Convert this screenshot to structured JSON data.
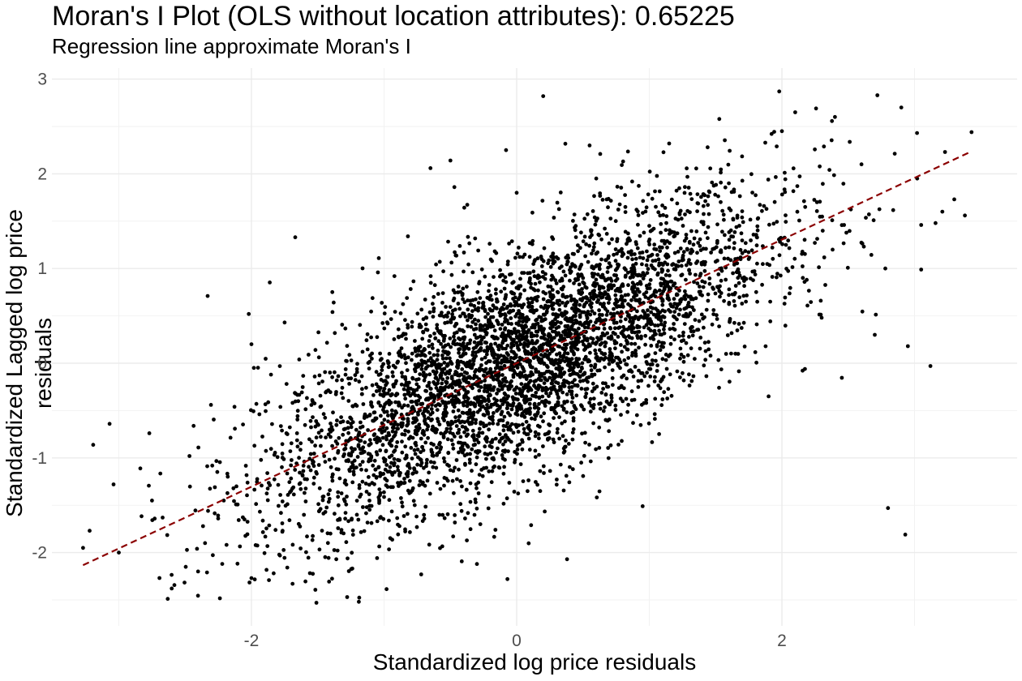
{
  "chart_data": {
    "type": "scatter",
    "title": "Moran's I Plot (OLS without location attributes): 0.65225",
    "subtitle": "Regression line approximate Moran's I",
    "xlabel": "Standardized log price residuals",
    "ylabel": "Standardized Lagged log price residuals",
    "xlim": [
      -3.5,
      3.6
    ],
    "ylim": [
      -2.7,
      3.1
    ],
    "x_ticks": [
      -2,
      0,
      2
    ],
    "x_tick_labels": [
      "-2",
      "0",
      "2"
    ],
    "y_ticks": [
      -2,
      -1,
      0,
      1,
      2,
      3
    ],
    "y_tick_labels": [
      "-2",
      "-1",
      "0",
      "1",
      "2",
      "3"
    ],
    "grid": true,
    "n_points_approx": 4500,
    "regression_line": {
      "slope": 0.65225,
      "intercept": 0.0,
      "x_range": [
        -3.27,
        3.43
      ],
      "color": "#8b0000",
      "style": "dashed"
    },
    "point_color": "#000000",
    "sample_points": [
      [
        -3.27,
        -1.95
      ],
      [
        -3.22,
        -1.77
      ],
      [
        -3.07,
        -0.64
      ],
      [
        -3.04,
        -1.28
      ],
      [
        -3.0,
        -2.0
      ],
      [
        -2.77,
        -0.74
      ],
      [
        -2.75,
        -1.45
      ],
      [
        -2.67,
        -1.63
      ],
      [
        -2.4,
        -0.89
      ],
      [
        -2.35,
        -1.9
      ],
      [
        -2.33,
        0.71
      ],
      [
        -2.22,
        -2.12
      ],
      [
        -2.02,
        0.52
      ],
      [
        -2.0,
        0.2
      ],
      [
        -2.0,
        -2.27
      ],
      [
        -1.75,
        0.43
      ],
      [
        -1.67,
        1.33
      ],
      [
        -1.69,
        -2.33
      ],
      [
        -1.6,
        -1.37
      ],
      [
        -1.51,
        -2.53
      ],
      [
        -1.36,
        -2.07
      ],
      [
        -1.38,
        0.64
      ],
      [
        -1.24,
        -1.05
      ],
      [
        -1.19,
        -2.52
      ],
      [
        -1.04,
        1.11
      ],
      [
        -0.99,
        -1.02
      ],
      [
        -0.82,
        1.34
      ],
      [
        -0.72,
        -2.23
      ],
      [
        -0.65,
        2.06
      ],
      [
        -0.5,
        2.14
      ],
      [
        -0.47,
        1.86
      ],
      [
        -0.29,
        1.19
      ],
      [
        -0.22,
        0.37
      ],
      [
        -0.08,
        2.25
      ],
      [
        -0.07,
        -2.28
      ],
      [
        0.0,
        1.8
      ],
      [
        0.2,
        2.82
      ],
      [
        0.38,
        -2.07
      ],
      [
        0.55,
        2.3
      ],
      [
        0.6,
        1.95
      ],
      [
        0.63,
        2.21
      ],
      [
        0.95,
        -1.51
      ],
      [
        1.0,
        1.45
      ],
      [
        1.15,
        2.32
      ],
      [
        1.3,
        0.6
      ],
      [
        1.44,
        2.28
      ],
      [
        1.6,
        1.9
      ],
      [
        1.75,
        1.1
      ],
      [
        1.9,
        -0.35
      ],
      [
        1.98,
        2.87
      ],
      [
        2.0,
        2.45
      ],
      [
        2.1,
        2.65
      ],
      [
        2.3,
        0.48
      ],
      [
        2.4,
        2.6
      ],
      [
        2.6,
        2.1
      ],
      [
        2.7,
        0.3
      ],
      [
        2.72,
        2.83
      ],
      [
        2.78,
        1.0
      ],
      [
        2.8,
        -1.53
      ],
      [
        2.9,
        2.7
      ],
      [
        2.95,
        0.18
      ],
      [
        3.02,
        1.95
      ],
      [
        3.05,
        1.46
      ],
      [
        3.12,
        -0.03
      ],
      [
        3.21,
        1.6
      ],
      [
        3.23,
        2.23
      ],
      [
        3.3,
        1.73
      ],
      [
        3.38,
        1.56
      ],
      [
        3.43,
        2.44
      ],
      [
        2.93,
        -1.81
      ]
    ]
  }
}
